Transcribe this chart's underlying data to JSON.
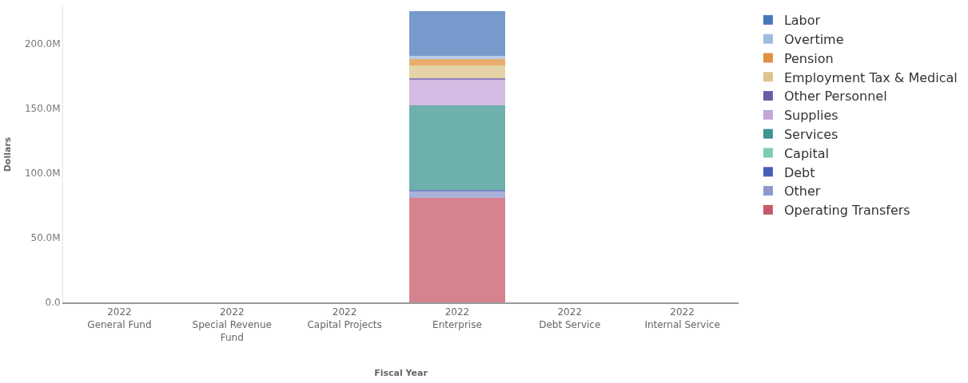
{
  "chart_data": {
    "type": "bar",
    "stacked": true,
    "xlabel": "Fiscal Year",
    "ylabel": "Dollars",
    "categories": [
      "2022\nGeneral Fund",
      "2022\nSpecial Revenue\nFund",
      "2022\nCapital Projects",
      "2022\nEnterprise",
      "2022\nDebt Service",
      "2022\nInternal Service"
    ],
    "ylim": [
      0,
      229
    ],
    "yticks": [
      {
        "value": 0,
        "label": "0.0"
      },
      {
        "value": 50,
        "label": "50.0M"
      },
      {
        "value": 100,
        "label": "100.0M"
      },
      {
        "value": 150,
        "label": "150.0M"
      },
      {
        "value": 200,
        "label": "200.0M"
      }
    ],
    "legend": "right",
    "series": [
      {
        "name": "Operating Transfers",
        "color": "#c55a6a",
        "values": [
          null,
          null,
          null,
          81,
          null,
          null
        ]
      },
      {
        "name": "Other",
        "color": "#8f98cc",
        "values": [
          null,
          null,
          null,
          5,
          null,
          null
        ]
      },
      {
        "name": "Debt",
        "color": "#4561b5",
        "values": [
          null,
          null,
          null,
          1,
          null,
          null
        ]
      },
      {
        "name": "Capital",
        "color": "#7ccbb5",
        "values": [
          null,
          null,
          null,
          0,
          null,
          null
        ]
      },
      {
        "name": "Services",
        "color": "#3d9690",
        "values": [
          null,
          null,
          null,
          65.5,
          null,
          null
        ]
      },
      {
        "name": "Supplies",
        "color": "#c3a6d9",
        "values": [
          null,
          null,
          null,
          20,
          null,
          null
        ]
      },
      {
        "name": "Other Personnel",
        "color": "#6b5aa6",
        "values": [
          null,
          null,
          null,
          1,
          null,
          null
        ]
      },
      {
        "name": "Employment Tax & Medical",
        "color": "#dcc48b",
        "values": [
          null,
          null,
          null,
          10,
          null,
          null
        ]
      },
      {
        "name": "Pension",
        "color": "#e0913f",
        "values": [
          null,
          null,
          null,
          5,
          null,
          null
        ]
      },
      {
        "name": "Overtime",
        "color": "#a0bbe0",
        "values": [
          null,
          null,
          null,
          2,
          null,
          null
        ]
      },
      {
        "name": "Labor",
        "color": "#4878b9",
        "values": [
          null,
          null,
          null,
          35,
          null,
          null
        ]
      }
    ]
  }
}
